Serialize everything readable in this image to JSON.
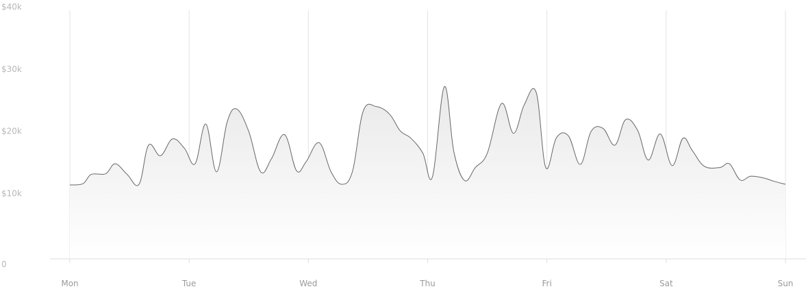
{
  "chart_data": {
    "type": "area",
    "title": "",
    "xlabel": "",
    "ylabel": "",
    "ylim": [
      0,
      40000
    ],
    "xlim": [
      0,
      6
    ],
    "grid": "vertical",
    "legend": "none",
    "colors": {
      "line": "#666666",
      "fill_top": "#e9e9e9",
      "fill_bottom": "#ffffff",
      "grid": "#e3e3e3",
      "axis": "#dddddd",
      "tick_text": "#9a9a9a",
      "y_tick_text": "#b7b7b7"
    },
    "x_ticks": [
      {
        "value": 0,
        "label": "Mon"
      },
      {
        "value": 1,
        "label": "Tue"
      },
      {
        "value": 2,
        "label": "Wed"
      },
      {
        "value": 3,
        "label": "Thu"
      },
      {
        "value": 4,
        "label": "Fri"
      },
      {
        "value": 5,
        "label": "Sat"
      },
      {
        "value": 6,
        "label": "Sun"
      }
    ],
    "y_ticks": [
      {
        "value": 0,
        "label": "0"
      },
      {
        "value": 10000,
        "label": "$10k"
      },
      {
        "value": 20000,
        "label": "$20k"
      },
      {
        "value": 30000,
        "label": "$30k"
      },
      {
        "value": 40000,
        "label": "$40k"
      }
    ],
    "series": [
      {
        "points": [
          [
            0.0,
            11900
          ],
          [
            0.11,
            12100
          ],
          [
            0.18,
            13600
          ],
          [
            0.3,
            13700
          ],
          [
            0.38,
            15300
          ],
          [
            0.48,
            13600
          ],
          [
            0.58,
            12000
          ],
          [
            0.66,
            18300
          ],
          [
            0.76,
            16600
          ],
          [
            0.86,
            19300
          ],
          [
            0.96,
            17800
          ],
          [
            1.05,
            15300
          ],
          [
            1.14,
            21700
          ],
          [
            1.23,
            14000
          ],
          [
            1.32,
            22100
          ],
          [
            1.4,
            24100
          ],
          [
            1.5,
            20500
          ],
          [
            1.6,
            14000
          ],
          [
            1.69,
            16100
          ],
          [
            1.8,
            20000
          ],
          [
            1.9,
            14200
          ],
          [
            1.98,
            15600
          ],
          [
            2.09,
            18700
          ],
          [
            2.19,
            14000
          ],
          [
            2.28,
            12000
          ],
          [
            2.37,
            14100
          ],
          [
            2.46,
            23800
          ],
          [
            2.57,
            24500
          ],
          [
            2.68,
            23300
          ],
          [
            2.77,
            20600
          ],
          [
            2.86,
            19400
          ],
          [
            2.96,
            17000
          ],
          [
            3.04,
            13200
          ],
          [
            3.14,
            27700
          ],
          [
            3.22,
            17200
          ],
          [
            3.31,
            12600
          ],
          [
            3.4,
            14700
          ],
          [
            3.5,
            17000
          ],
          [
            3.62,
            25000
          ],
          [
            3.72,
            20200
          ],
          [
            3.81,
            24800
          ],
          [
            3.91,
            26800
          ],
          [
            3.99,
            14700
          ],
          [
            4.08,
            19500
          ],
          [
            4.18,
            19800
          ],
          [
            4.28,
            15200
          ],
          [
            4.37,
            20500
          ],
          [
            4.47,
            21000
          ],
          [
            4.57,
            18300
          ],
          [
            4.66,
            22400
          ],
          [
            4.76,
            20700
          ],
          [
            4.85,
            15900
          ],
          [
            4.95,
            20100
          ],
          [
            5.05,
            15000
          ],
          [
            5.14,
            19400
          ],
          [
            5.22,
            17400
          ],
          [
            5.32,
            14900
          ],
          [
            5.45,
            14700
          ],
          [
            5.53,
            15300
          ],
          [
            5.62,
            12700
          ],
          [
            5.71,
            13300
          ],
          [
            5.82,
            13000
          ],
          [
            5.9,
            12500
          ],
          [
            6.0,
            12000
          ]
        ]
      }
    ]
  }
}
